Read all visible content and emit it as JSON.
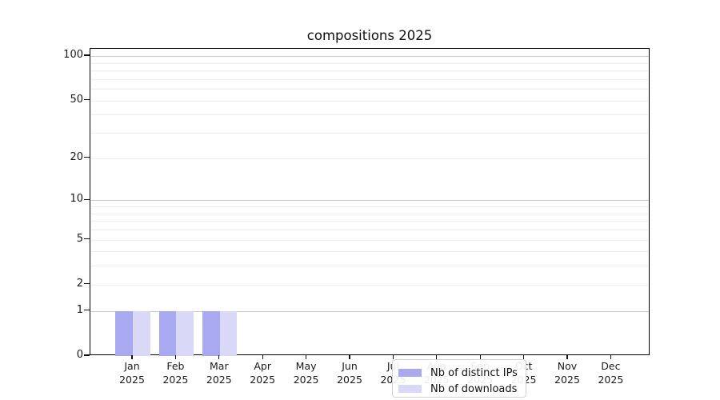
{
  "chart_data": {
    "type": "bar",
    "title": "compositions 2025",
    "categories": [
      "Jan",
      "Feb",
      "Mar",
      "Apr",
      "May",
      "Jun",
      "Jul",
      "Aug",
      "Sep",
      "Oct",
      "Nov",
      "Dec"
    ],
    "x_year": "2025",
    "series": [
      {
        "name": "Nb of distinct IPs",
        "color": "#a9a9f2",
        "values": [
          1,
          1,
          1,
          0,
          0,
          0,
          0,
          0,
          0,
          0,
          0,
          0
        ]
      },
      {
        "name": "Nb of downloads",
        "color": "#d9d9f7",
        "values": [
          1,
          1,
          1,
          0,
          0,
          0,
          0,
          0,
          0,
          0,
          0,
          0
        ]
      }
    ],
    "xlabel": "",
    "ylabel": "",
    "yscale": "log1p",
    "ylim": [
      0,
      112
    ],
    "yticks": [
      0,
      1,
      2,
      5,
      10,
      20,
      50,
      100
    ],
    "grid_major": [
      1,
      10,
      100
    ],
    "grid_minor": [
      2,
      3,
      4,
      5,
      6,
      7,
      8,
      9,
      20,
      30,
      40,
      50,
      60,
      70,
      80,
      90
    ],
    "grid_major_color": "#c9c9c9",
    "grid_minor_color": "#ededed",
    "grid": "horizontal only",
    "legend_position": "lower center"
  }
}
